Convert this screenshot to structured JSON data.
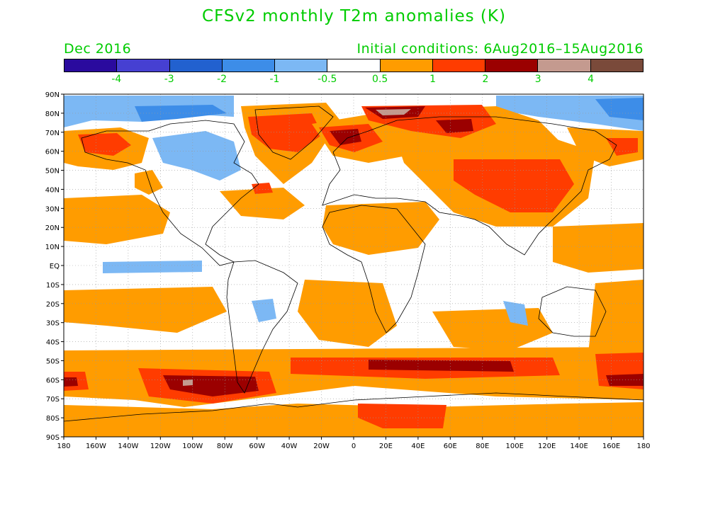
{
  "title": "CFSv2 monthly T2m anomalies (K)",
  "valid_period": "Dec 2016",
  "initial_conditions": "Initial conditions: 6Aug2016–15Aug2016",
  "colorbar": {
    "colors": [
      "#2a0a9e",
      "#4640d2",
      "#2261cf",
      "#3d8de8",
      "#7cb8f4",
      "#ffffff",
      "#ff9c00",
      "#ff3c00",
      "#9b0000",
      "#c49a8f",
      "#7a4a3a"
    ],
    "labels": [
      "-4",
      "-3",
      "-2",
      "-1",
      "-0.5",
      "0.5",
      "1",
      "2",
      "3",
      "4"
    ]
  },
  "map": {
    "lat_labels": [
      "90N",
      "80N",
      "70N",
      "60N",
      "50N",
      "40N",
      "30N",
      "20N",
      "10N",
      "EQ",
      "10S",
      "20S",
      "30S",
      "40S",
      "50S",
      "60S",
      "70S",
      "80S",
      "90S"
    ],
    "lon_labels": [
      "180",
      "160W",
      "140W",
      "120W",
      "100W",
      "80W",
      "60W",
      "40W",
      "20W",
      "0",
      "20E",
      "40E",
      "60E",
      "80E",
      "100E",
      "120E",
      "140E",
      "160E",
      "180"
    ]
  },
  "colors": {
    "text": "#00cc00",
    "axis": "#000000"
  }
}
